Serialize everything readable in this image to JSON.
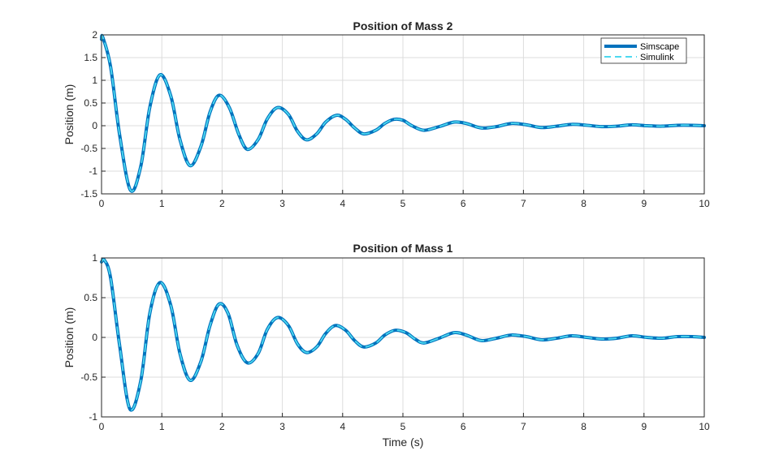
{
  "chart_data": [
    {
      "type": "line",
      "title": "Position of Mass 2",
      "xlabel": "",
      "ylabel": "Position (m)",
      "xlim": [
        0,
        10
      ],
      "ylim": [
        -1.5,
        2
      ],
      "xticks": [
        0,
        1,
        2,
        3,
        4,
        5,
        6,
        7,
        8,
        9,
        10
      ],
      "yticks": [
        -1.5,
        -1,
        -0.5,
        0,
        0.5,
        1,
        1.5,
        2
      ],
      "xtick_labels": [
        "0",
        "1",
        "2",
        "3",
        "4",
        "5",
        "6",
        "7",
        "8",
        "9",
        "10"
      ],
      "ytick_labels": [
        "-1.5",
        "-1",
        "-0.5",
        "0",
        "0.5",
        "1",
        "1.5",
        "2"
      ],
      "grid": true,
      "legend": {
        "placement": "top-right",
        "entries": [
          "Simscape",
          "Simulink"
        ]
      },
      "series": [
        {
          "name": "Simscape",
          "color": "#0072BD",
          "style": "solid",
          "x": [
            0,
            0.02,
            0.15,
            0.3,
            0.48,
            0.65,
            0.8,
            0.97,
            1.15,
            1.3,
            1.47,
            1.65,
            1.8,
            1.95,
            2.12,
            2.28,
            2.42,
            2.6,
            2.75,
            2.92,
            3.1,
            3.25,
            3.4,
            3.57,
            3.72,
            3.9,
            4.05,
            4.2,
            4.35,
            4.55,
            4.7,
            4.85,
            5.0,
            5.15,
            5.35,
            5.6,
            5.85,
            6.05,
            6.3,
            6.55,
            6.8,
            7.05,
            7.3,
            7.55,
            7.8,
            8.05,
            8.3,
            8.55,
            8.8,
            9.05,
            9.3,
            9.55,
            9.8,
            10.0
          ],
          "values": [
            1.9,
            1.95,
            1.3,
            -0.2,
            -1.42,
            -0.9,
            0.4,
            1.12,
            0.65,
            -0.3,
            -0.88,
            -0.45,
            0.3,
            0.67,
            0.4,
            -0.2,
            -0.52,
            -0.3,
            0.15,
            0.4,
            0.25,
            -0.12,
            -0.31,
            -0.18,
            0.08,
            0.23,
            0.14,
            -0.05,
            -0.18,
            -0.1,
            0.05,
            0.14,
            0.12,
            0.0,
            -0.1,
            -0.02,
            0.08,
            0.05,
            -0.05,
            -0.02,
            0.05,
            0.02,
            -0.04,
            -0.01,
            0.03,
            0.01,
            -0.02,
            -0.01,
            0.02,
            0.0,
            -0.01,
            0.01,
            0.01,
            0.0
          ]
        },
        {
          "name": "Simulink",
          "color": "#4DD9F0",
          "style": "dashed",
          "x": [
            0,
            0.02,
            0.15,
            0.3,
            0.48,
            0.65,
            0.8,
            0.97,
            1.15,
            1.3,
            1.47,
            1.65,
            1.8,
            1.95,
            2.12,
            2.28,
            2.42,
            2.6,
            2.75,
            2.92,
            3.1,
            3.25,
            3.4,
            3.57,
            3.72,
            3.9,
            4.05,
            4.2,
            4.35,
            4.55,
            4.7,
            4.85,
            5.0,
            5.15,
            5.35,
            5.6,
            5.85,
            6.05,
            6.3,
            6.55,
            6.8,
            7.05,
            7.3,
            7.55,
            7.8,
            8.05,
            8.3,
            8.55,
            8.8,
            9.05,
            9.3,
            9.55,
            9.8,
            10.0
          ],
          "values": [
            1.9,
            1.95,
            1.3,
            -0.2,
            -1.42,
            -0.9,
            0.4,
            1.12,
            0.65,
            -0.3,
            -0.88,
            -0.45,
            0.3,
            0.67,
            0.4,
            -0.2,
            -0.52,
            -0.3,
            0.15,
            0.4,
            0.25,
            -0.12,
            -0.31,
            -0.18,
            0.08,
            0.23,
            0.14,
            -0.05,
            -0.18,
            -0.1,
            0.05,
            0.14,
            0.12,
            0.0,
            -0.1,
            -0.02,
            0.08,
            0.05,
            -0.05,
            -0.02,
            0.05,
            0.02,
            -0.04,
            -0.01,
            0.03,
            0.01,
            -0.02,
            -0.01,
            0.02,
            0.0,
            -0.01,
            0.01,
            0.01,
            0.0
          ]
        }
      ]
    },
    {
      "type": "line",
      "title": "Position of Mass 1",
      "xlabel": "Time (s)",
      "ylabel": "Position (m)",
      "xlim": [
        0,
        10
      ],
      "ylim": [
        -1,
        1
      ],
      "xticks": [
        0,
        1,
        2,
        3,
        4,
        5,
        6,
        7,
        8,
        9,
        10
      ],
      "yticks": [
        -1,
        -0.5,
        0,
        0.5,
        1
      ],
      "xtick_labels": [
        "0",
        "1",
        "2",
        "3",
        "4",
        "5",
        "6",
        "7",
        "8",
        "9",
        "10"
      ],
      "ytick_labels": [
        "-1",
        "-0.5",
        "0",
        "0.5",
        "1"
      ],
      "grid": true,
      "series": [
        {
          "name": "Simscape",
          "color": "#0072BD",
          "style": "solid",
          "x": [
            0,
            0.05,
            0.15,
            0.3,
            0.47,
            0.65,
            0.8,
            0.97,
            1.15,
            1.3,
            1.47,
            1.65,
            1.8,
            1.95,
            2.1,
            2.25,
            2.42,
            2.6,
            2.75,
            2.92,
            3.1,
            3.25,
            3.4,
            3.57,
            3.72,
            3.88,
            4.05,
            4.2,
            4.35,
            4.55,
            4.7,
            4.87,
            5.05,
            5.2,
            5.35,
            5.6,
            5.85,
            6.05,
            6.3,
            6.55,
            6.8,
            7.05,
            7.3,
            7.55,
            7.8,
            8.05,
            8.3,
            8.55,
            8.8,
            9.05,
            9.3,
            9.55,
            9.8,
            10.0
          ],
          "values": [
            0.95,
            0.97,
            0.75,
            -0.1,
            -0.9,
            -0.55,
            0.3,
            0.69,
            0.4,
            -0.2,
            -0.54,
            -0.3,
            0.15,
            0.42,
            0.3,
            -0.1,
            -0.32,
            -0.2,
            0.1,
            0.25,
            0.15,
            -0.08,
            -0.19,
            -0.12,
            0.05,
            0.15,
            0.09,
            -0.04,
            -0.12,
            -0.07,
            0.03,
            0.09,
            0.06,
            -0.02,
            -0.07,
            -0.01,
            0.06,
            0.03,
            -0.04,
            -0.01,
            0.03,
            0.01,
            -0.03,
            -0.01,
            0.02,
            0.0,
            -0.02,
            -0.01,
            0.02,
            0.0,
            -0.01,
            0.01,
            0.01,
            0.0
          ]
        },
        {
          "name": "Simulink",
          "color": "#4DD9F0",
          "style": "dashed",
          "x": [
            0,
            0.05,
            0.15,
            0.3,
            0.47,
            0.65,
            0.8,
            0.97,
            1.15,
            1.3,
            1.47,
            1.65,
            1.8,
            1.95,
            2.1,
            2.25,
            2.42,
            2.6,
            2.75,
            2.92,
            3.1,
            3.25,
            3.4,
            3.57,
            3.72,
            3.88,
            4.05,
            4.2,
            4.35,
            4.55,
            4.7,
            4.87,
            5.05,
            5.2,
            5.35,
            5.6,
            5.85,
            6.05,
            6.3,
            6.55,
            6.8,
            7.05,
            7.3,
            7.55,
            7.8,
            8.05,
            8.3,
            8.55,
            8.8,
            9.05,
            9.3,
            9.55,
            9.8,
            10.0
          ],
          "values": [
            0.95,
            0.97,
            0.75,
            -0.1,
            -0.9,
            -0.55,
            0.3,
            0.69,
            0.4,
            -0.2,
            -0.54,
            -0.3,
            0.15,
            0.42,
            0.3,
            -0.1,
            -0.32,
            -0.2,
            0.1,
            0.25,
            0.15,
            -0.08,
            -0.19,
            -0.12,
            0.05,
            0.15,
            0.09,
            -0.04,
            -0.12,
            -0.07,
            0.03,
            0.09,
            0.06,
            -0.02,
            -0.07,
            -0.01,
            0.06,
            0.03,
            -0.04,
            -0.01,
            0.03,
            0.01,
            -0.03,
            -0.01,
            0.02,
            0.0,
            -0.02,
            -0.01,
            0.02,
            0.0,
            -0.01,
            0.01,
            0.01,
            0.0
          ]
        }
      ]
    }
  ]
}
